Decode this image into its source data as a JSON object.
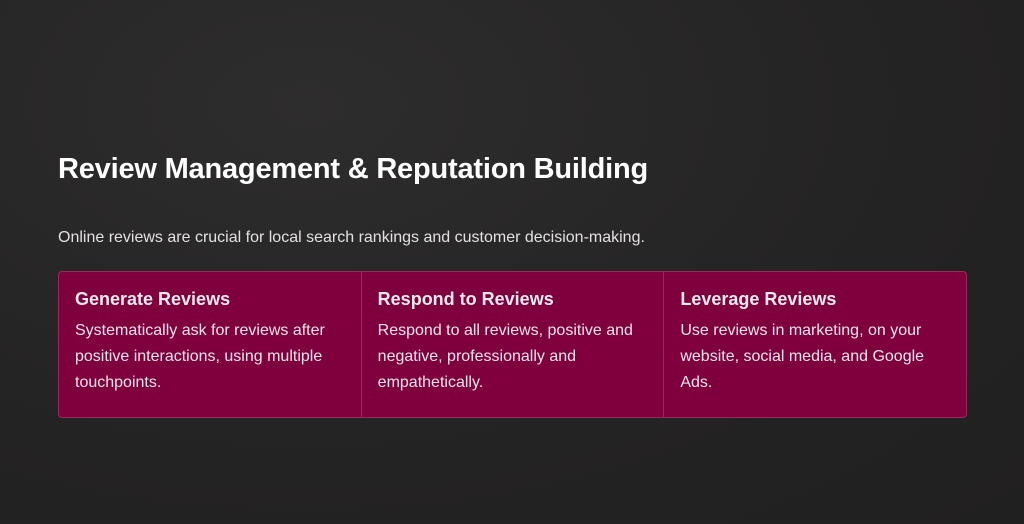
{
  "section": {
    "title": "Review Management & Reputation Building",
    "subtitle": "Online reviews are crucial for local search rankings and customer decision-making.",
    "cards": [
      {
        "title": "Generate Reviews",
        "body": "Systematically ask for reviews after positive interactions, using multiple touchpoints."
      },
      {
        "title": "Respond to Reviews",
        "body": "Respond to all reviews, positive and negative, professionally and empathetically."
      },
      {
        "title": "Leverage Reviews",
        "body": "Use reviews in marketing, on your website, social media, and Google Ads."
      }
    ]
  },
  "colors": {
    "background": "#242323",
    "card": "#7e003c",
    "card_border": "#9a2a5a"
  }
}
